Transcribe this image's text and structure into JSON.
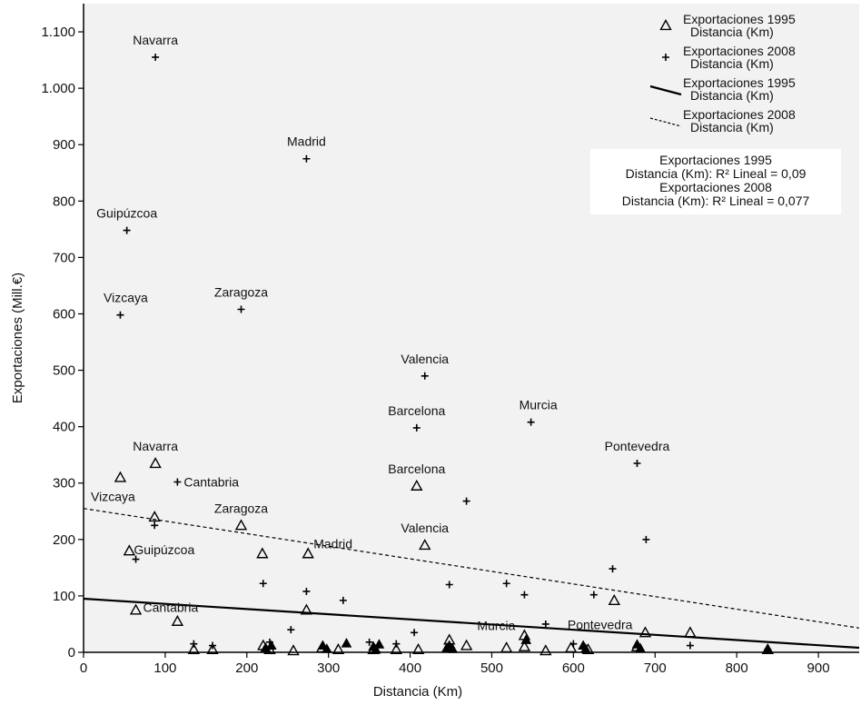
{
  "chart_data": {
    "type": "scatter",
    "xlabel": "Distancia (Km)",
    "ylabel": "Exportaciones (Mill.€)",
    "xlim": [
      0,
      950
    ],
    "ylim": [
      0,
      1150
    ],
    "x_ticks": [
      0,
      100,
      200,
      300,
      400,
      500,
      600,
      700,
      800,
      900
    ],
    "x_tick_labels": [
      "0",
      "100",
      "200",
      "300",
      "400",
      "500",
      "600",
      "700",
      "800",
      "900"
    ],
    "y_ticks": [
      0,
      100,
      200,
      300,
      400,
      500,
      600,
      700,
      800,
      900,
      1000,
      1100
    ],
    "y_tick_labels": [
      "0",
      "100",
      "200",
      "300",
      "400",
      "500",
      "600",
      "700",
      "800",
      "900",
      "1.000",
      "1.100"
    ],
    "grid": false,
    "background": "#f2f2f2",
    "legend_position": "top-right",
    "legend": [
      {
        "marker": "triangle",
        "line1": "Exportaciones 1995",
        "line2": "Distancia (Km)"
      },
      {
        "marker": "plus",
        "line1": "Exportaciones 2008",
        "line2": "Distancia (Km)"
      },
      {
        "marker": "solid-line",
        "line1": "Exportaciones 1995",
        "line2": "Distancia (Km)"
      },
      {
        "marker": "dashed-line",
        "line1": "Exportaciones 2008",
        "line2": "Distancia (Km)"
      }
    ],
    "r2_annotation": [
      "Exportaciones 1995",
      "Distancia (Km): R² Lineal = 0,09",
      "Exportaciones 2008",
      "Distancia (Km): R² Lineal = 0,077"
    ],
    "series": [
      {
        "name": "Exportaciones 1995 Distancia (Km)",
        "marker": "triangle",
        "points": [
          {
            "x": 88,
            "y": 335,
            "label": "Navarra"
          },
          {
            "x": 45,
            "y": 310,
            "label": "Vizcaya"
          },
          {
            "x": 87,
            "y": 240,
            "label": ""
          },
          {
            "x": 193,
            "y": 225,
            "label": "Zaragoza"
          },
          {
            "x": 56,
            "y": 180,
            "label": "Guipúzcoa"
          },
          {
            "x": 275,
            "y": 175,
            "label": "Madrid"
          },
          {
            "x": 219,
            "y": 175,
            "label": ""
          },
          {
            "x": 408,
            "y": 295,
            "label": "Barcelona"
          },
          {
            "x": 418,
            "y": 190,
            "label": "Valencia"
          },
          {
            "x": 64,
            "y": 75,
            "label": "Cantabria"
          },
          {
            "x": 115,
            "y": 55,
            "label": ""
          },
          {
            "x": 273,
            "y": 75,
            "label": ""
          },
          {
            "x": 650,
            "y": 92,
            "label": ""
          },
          {
            "x": 540,
            "y": 30,
            "label": "Murcia"
          },
          {
            "x": 448,
            "y": 22,
            "label": ""
          },
          {
            "x": 469,
            "y": 12,
            "label": ""
          },
          {
            "x": 540,
            "y": 10,
            "label": ""
          },
          {
            "x": 518,
            "y": 8,
            "label": ""
          },
          {
            "x": 597,
            "y": 8,
            "label": ""
          },
          {
            "x": 688,
            "y": 35,
            "label": "Pontevedra"
          },
          {
            "x": 743,
            "y": 35,
            "label": ""
          },
          {
            "x": 678,
            "y": 10,
            "label": ""
          },
          {
            "x": 135,
            "y": 5,
            "label": ""
          },
          {
            "x": 158,
            "y": 5,
            "label": ""
          },
          {
            "x": 220,
            "y": 12,
            "label": ""
          },
          {
            "x": 228,
            "y": 5,
            "label": ""
          },
          {
            "x": 257,
            "y": 3,
            "label": ""
          },
          {
            "x": 292,
            "y": 8,
            "label": ""
          },
          {
            "x": 312,
            "y": 5,
            "label": ""
          },
          {
            "x": 355,
            "y": 5,
            "label": ""
          },
          {
            "x": 383,
            "y": 5,
            "label": ""
          },
          {
            "x": 410,
            "y": 5,
            "label": ""
          },
          {
            "x": 566,
            "y": 3,
            "label": ""
          },
          {
            "x": 618,
            "y": 5,
            "label": ""
          },
          {
            "x": 838,
            "y": 5,
            "label": ""
          }
        ]
      },
      {
        "name": "Exportaciones 2008 Distancia (Km)",
        "marker": "plus",
        "points": [
          {
            "x": 88,
            "y": 1055,
            "label": "Navarra"
          },
          {
            "x": 273,
            "y": 875,
            "label": "Madrid"
          },
          {
            "x": 53,
            "y": 748,
            "label": "Guipúzcoa"
          },
          {
            "x": 193,
            "y": 608,
            "label": "Zaragoza"
          },
          {
            "x": 45,
            "y": 598,
            "label": "Vizcaya"
          },
          {
            "x": 418,
            "y": 490,
            "label": "Valencia"
          },
          {
            "x": 408,
            "y": 398,
            "label": "Barcelona"
          },
          {
            "x": 548,
            "y": 408,
            "label": "Murcia"
          },
          {
            "x": 678,
            "y": 335,
            "label": "Pontevedra"
          },
          {
            "x": 115,
            "y": 302,
            "label": "Cantabria"
          },
          {
            "x": 469,
            "y": 268,
            "label": ""
          },
          {
            "x": 87,
            "y": 225,
            "label": ""
          },
          {
            "x": 689,
            "y": 200,
            "label": ""
          },
          {
            "x": 64,
            "y": 165,
            "label": ""
          },
          {
            "x": 648,
            "y": 148,
            "label": ""
          },
          {
            "x": 220,
            "y": 122,
            "label": ""
          },
          {
            "x": 448,
            "y": 120,
            "label": ""
          },
          {
            "x": 518,
            "y": 122,
            "label": ""
          },
          {
            "x": 273,
            "y": 108,
            "label": ""
          },
          {
            "x": 540,
            "y": 102,
            "label": ""
          },
          {
            "x": 625,
            "y": 102,
            "label": ""
          },
          {
            "x": 318,
            "y": 92,
            "label": ""
          },
          {
            "x": 254,
            "y": 40,
            "label": ""
          },
          {
            "x": 566,
            "y": 50,
            "label": ""
          },
          {
            "x": 405,
            "y": 35,
            "label": ""
          },
          {
            "x": 135,
            "y": 15,
            "label": ""
          },
          {
            "x": 158,
            "y": 12,
            "label": ""
          },
          {
            "x": 350,
            "y": 18,
            "label": ""
          },
          {
            "x": 383,
            "y": 15,
            "label": ""
          },
          {
            "x": 743,
            "y": 12,
            "label": ""
          },
          {
            "x": 838,
            "y": 5,
            "label": ""
          },
          {
            "x": 228,
            "y": 18,
            "label": ""
          },
          {
            "x": 600,
            "y": 15,
            "label": ""
          }
        ]
      }
    ],
    "filled_points": [
      {
        "x": 223,
        "y": 8
      },
      {
        "x": 230,
        "y": 12
      },
      {
        "x": 293,
        "y": 12
      },
      {
        "x": 298,
        "y": 6
      },
      {
        "x": 322,
        "y": 16
      },
      {
        "x": 355,
        "y": 10
      },
      {
        "x": 358,
        "y": 5
      },
      {
        "x": 362,
        "y": 14
      },
      {
        "x": 445,
        "y": 8
      },
      {
        "x": 448,
        "y": 12
      },
      {
        "x": 452,
        "y": 6
      },
      {
        "x": 542,
        "y": 22
      },
      {
        "x": 612,
        "y": 12
      },
      {
        "x": 615,
        "y": 6
      },
      {
        "x": 678,
        "y": 14
      },
      {
        "x": 682,
        "y": 7
      },
      {
        "x": 838,
        "y": 4
      }
    ],
    "fit_lines": [
      {
        "name": "Exportaciones 1995 Distancia (Km)",
        "style": "solid",
        "x": [
          0,
          950
        ],
        "y": [
          95,
          8
        ]
      },
      {
        "name": "Exportaciones 2008 Distancia (Km)",
        "style": "dashed",
        "x": [
          0,
          950
        ],
        "y": [
          255,
          43
        ]
      }
    ]
  }
}
